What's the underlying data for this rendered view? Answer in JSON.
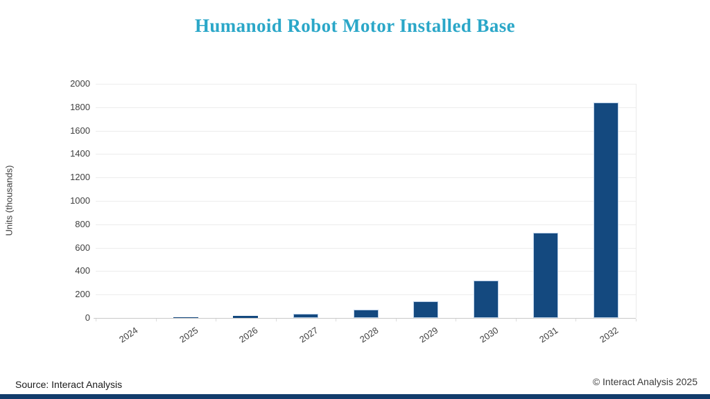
{
  "page": {
    "footer": {
      "source": "Source: Interact Analysis",
      "copyright": "© Interact Analysis 2025"
    },
    "colors": {
      "title_teal": "#2ba7c8",
      "bar_navy": "#14497f",
      "bar_border": "#b9cfe8",
      "bottom_strip_navy": "#123c6b",
      "gridline_gray": "#ececec",
      "axis_line_gray": "#c8c8c8",
      "tick_text_gray": "#3f3f3f"
    }
  },
  "chart_data": {
    "type": "bar",
    "title": "Humanoid Robot Motor Installed Base",
    "categories": [
      "2024",
      "2025",
      "2026",
      "2027",
      "2028",
      "2029",
      "2030",
      "2031",
      "2032"
    ],
    "values": [
      1,
      8,
      18,
      35,
      70,
      140,
      320,
      730,
      1840
    ],
    "xlabel": "",
    "ylabel": "Units (thousands)",
    "ylim": [
      0,
      2000
    ],
    "ytick_step": 200,
    "yticks": [
      0,
      200,
      400,
      600,
      800,
      1000,
      1200,
      1400,
      1600,
      1800,
      2000
    ],
    "grid": true,
    "legend": false,
    "bar_color": "#14497f"
  }
}
